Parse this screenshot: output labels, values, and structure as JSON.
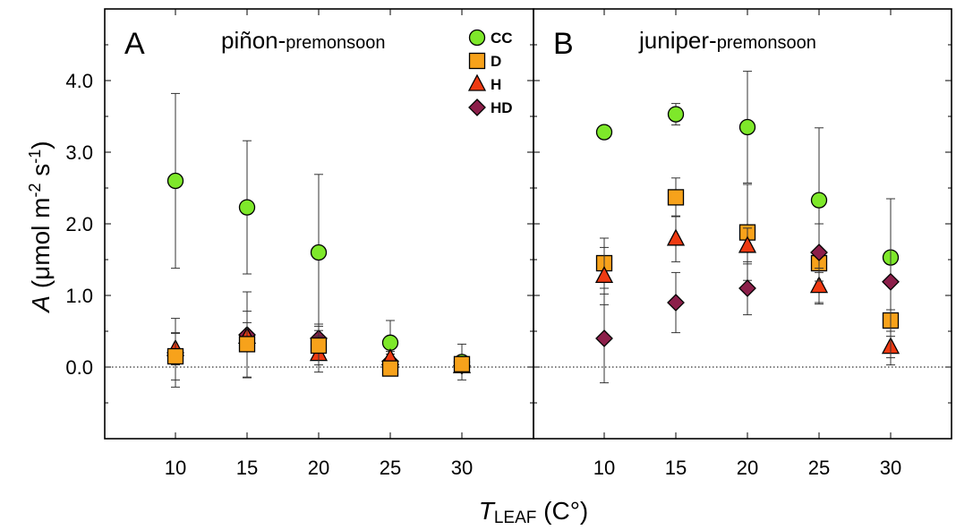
{
  "chart_data": {
    "type": "scatter",
    "xlabel": {
      "main": "T",
      "subscript": "LEAF",
      "unit": "(C°)"
    },
    "ylabel": {
      "prefix": "A",
      "unit_open": "(μmol m",
      "sup1": "-2",
      "mid": " s",
      "sup2": "-1",
      "unit_close": ")"
    },
    "x_ticks": [
      "10",
      "15",
      "20",
      "25",
      "30"
    ],
    "y_ticks": [
      "0.0",
      "1.0",
      "2.0",
      "3.0",
      "4.0"
    ],
    "xlim": [
      5,
      35
    ],
    "ylim": [
      -1.0,
      5.0
    ],
    "grid": false,
    "reference_line_y": 0,
    "legend": {
      "placement": "top-right of panel A",
      "entries": [
        {
          "name": "CC",
          "marker": "circle",
          "color": "#7ee82a"
        },
        {
          "name": "D",
          "marker": "square",
          "color": "#f7a21b"
        },
        {
          "name": "H",
          "marker": "triangle",
          "color": "#ee3a12"
        },
        {
          "name": "HD",
          "marker": "diamond",
          "color": "#8c1f4a"
        }
      ]
    },
    "panels": [
      {
        "letter": "A",
        "title_main": "piñon-",
        "title_sub": "premonsoon",
        "series": [
          {
            "name": "CC",
            "points": [
              {
                "x": 10,
                "y": 2.6,
                "err": 1.22
              },
              {
                "x": 15,
                "y": 2.23,
                "err": 0.93
              },
              {
                "x": 20,
                "y": 1.6,
                "err": 1.09
              },
              {
                "x": 25,
                "y": 0.34,
                "err": 0.31
              },
              {
                "x": 30,
                "y": 0.07,
                "err": 0.25
              }
            ]
          },
          {
            "name": "HD",
            "points": [
              {
                "x": 10,
                "y": 0.2,
                "err": 0.48
              },
              {
                "x": 15,
                "y": 0.45,
                "err": 0.6
              },
              {
                "x": 20,
                "y": 0.4,
                "err": 0.2
              },
              {
                "x": 25,
                "y": 0.08,
                "err": 0.1
              },
              {
                "x": 30,
                "y": 0.02,
                "err": 0.08
              }
            ]
          },
          {
            "name": "H",
            "points": [
              {
                "x": 10,
                "y": 0.25,
                "err": 0.22
              },
              {
                "x": 15,
                "y": 0.42,
                "err": 0.2
              },
              {
                "x": 20,
                "y": 0.18,
                "err": 0.25
              },
              {
                "x": 25,
                "y": 0.12,
                "err": 0.1
              },
              {
                "x": 30,
                "y": 0.01,
                "err": 0.08
              }
            ]
          },
          {
            "name": "D",
            "points": [
              {
                "x": 10,
                "y": 0.15,
                "err": 0.33
              },
              {
                "x": 15,
                "y": 0.32,
                "err": 0.46
              },
              {
                "x": 20,
                "y": 0.3,
                "err": 0.27
              },
              {
                "x": 25,
                "y": -0.02,
                "err": 0.08
              },
              {
                "x": 30,
                "y": 0.04,
                "err": 0.08
              }
            ]
          }
        ]
      },
      {
        "letter": "B",
        "title_main": "juniper-",
        "title_sub": "premonsoon",
        "series": [
          {
            "name": "CC",
            "points": [
              {
                "x": 10,
                "y": 3.28,
                "err": 0
              },
              {
                "x": 15,
                "y": 3.53,
                "err": 0.15
              },
              {
                "x": 20,
                "y": 3.35,
                "err": 0.78
              },
              {
                "x": 25,
                "y": 2.33,
                "err": 1.01
              },
              {
                "x": 30,
                "y": 1.53,
                "err": 0.82
              }
            ]
          },
          {
            "name": "D",
            "points": [
              {
                "x": 10,
                "y": 1.45,
                "err": 0.35
              },
              {
                "x": 15,
                "y": 2.37,
                "err": 0.27
              },
              {
                "x": 20,
                "y": 1.88,
                "err": 0.67
              },
              {
                "x": 25,
                "y": 1.45,
                "err": 0.55
              },
              {
                "x": 30,
                "y": 0.65,
                "err": 0.15
              }
            ]
          },
          {
            "name": "H",
            "points": [
              {
                "x": 10,
                "y": 1.27,
                "err": 0.4
              },
              {
                "x": 15,
                "y": 1.79,
                "err": 0.32
              },
              {
                "x": 20,
                "y": 1.69,
                "err": 0.25
              },
              {
                "x": 25,
                "y": 1.13,
                "err": 0.25
              },
              {
                "x": 30,
                "y": 0.28,
                "err": 0.15
              }
            ]
          },
          {
            "name": "HD",
            "points": [
              {
                "x": 10,
                "y": 0.4,
                "err": 0.62
              },
              {
                "x": 15,
                "y": 0.9,
                "err": 0.42
              },
              {
                "x": 20,
                "y": 1.1,
                "err": 0.37
              },
              {
                "x": 25,
                "y": 1.6,
                "err": 0.4
              },
              {
                "x": 30,
                "y": 1.19,
                "err": 1.16
              }
            ]
          }
        ]
      }
    ]
  }
}
